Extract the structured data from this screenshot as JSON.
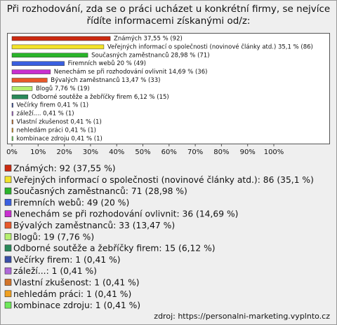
{
  "chart_data": {
    "type": "bar",
    "title": [
      "Při rozhodování, zda se o práci ucházet u konkrétní firmy, se nejvíce",
      "řídíte informacemi získanými od/z:"
    ],
    "categories": [
      "Známých",
      "Veřejných informací o společnosti (novinové články atd.)",
      "Současných zaměstnanců",
      "Firemních webů",
      "Nenechám se při rozhodování ovlivnit",
      "Bývalých zaměstnanců",
      "Blogů",
      "Odborné soutěže a žebříčky firem",
      "Večírky firem",
      "záleží....",
      "Vlastní zkušenost",
      "nehledám práci",
      "kombinace zdroju"
    ],
    "values": [
      37.55,
      35.1,
      28.98,
      20,
      14.69,
      13.47,
      7.76,
      6.12,
      0.41,
      0.41,
      0.41,
      0.41,
      0.41
    ],
    "value_labels": [
      "Známých 37,55 % (92)",
      "Veřejných informací o společnosti (novinové články atd.) 35,1 % (86)",
      "Současných zaměstnanců 28,98 % (71)",
      "Firemních webů 20 % (49)",
      "Nenechám se při rozhodování ovlivnit 14,69 % (36)",
      "Bývalých zaměstnanců 13,47 % (33)",
      "Blogů 7,76 % (19)",
      "Odborné soutěže a žebříčky firem 6,12 % (15)",
      "Večírky firem 0,41 % (1)",
      "záleží.... 0,41 % (1)",
      "Vlastní zkušenost 0,41 % (1)",
      "nehledám práci 0,41 % (1)",
      "kombinace zdroju 0,41 % (1)"
    ],
    "legend_labels": [
      "Známých: 92 (37,55 %)",
      "Veřejných informací o společnosti (novinové články atd.): 86 (35,1 %)",
      "Současných zaměstnanců: 71 (28,98 %)",
      "Firemních webů: 49 (20 %)",
      "Nenechám se při rozhodování ovlivnit: 36 (14,69 %)",
      "Bývalých zaměstnanců: 33 (13,47 %)",
      "Blogů: 19 (7,76 %)",
      "Odborné soutěže a žebříčky firem: 15 (6,12 %)",
      "Večírky firem: 1 (0,41 %)",
      "záleží...: 1 (0,41 %)",
      "Vlastní zkušenost: 1 (0,41 %)",
      "nehledám práci: 1 (0,41 %)",
      "kombinace zdroju: 1 (0,41 %)"
    ],
    "colors": [
      "#cc2a10",
      "#f2e32a",
      "#2bb52b",
      "#3a5fe0",
      "#c92fd0",
      "#e8582a",
      "#b6ef6e",
      "#2a8a5a",
      "#3a4fa8",
      "#b068d8",
      "#d2742a",
      "#f0a020",
      "#6ee85a"
    ],
    "xlim": [
      0,
      100
    ],
    "xticks": [
      {
        "value": 0,
        "label": "0%"
      },
      {
        "value": 10,
        "label": "10%"
      },
      {
        "value": 20,
        "label": "20%"
      },
      {
        "value": 30,
        "label": "30%"
      },
      {
        "value": 40,
        "label": "40%"
      },
      {
        "value": 50,
        "label": "50%"
      },
      {
        "value": 60,
        "label": "60%"
      },
      {
        "value": 70,
        "label": "70%"
      },
      {
        "value": 80,
        "label": "80%"
      },
      {
        "value": 90,
        "label": "90%"
      },
      {
        "value": 100,
        "label": "100%"
      }
    ],
    "source": "zdroj: https://personalni-marketing.vyplnto.cz"
  }
}
